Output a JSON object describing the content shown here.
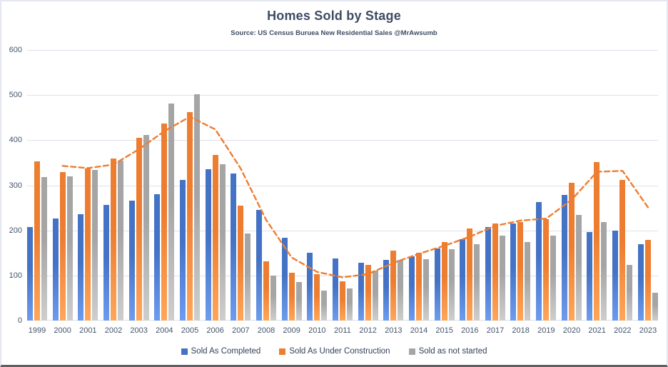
{
  "header": {
    "title": "Homes Sold by Stage",
    "subtitle": "Source: US Census Buruea New Residential Sales @MrAwsumb"
  },
  "colors": {
    "completed": "#4472C4",
    "under_construction": "#ED7D31",
    "not_started": "#A5A5A5",
    "trend": "#ED7D31",
    "text": "#44546a",
    "gridline": "#dde1ea"
  },
  "chart_data": {
    "type": "bar",
    "title": "Homes Sold by Stage",
    "subtitle": "Source: US Census Buruea New Residential Sales @MrAwsumb",
    "xlabel": "",
    "ylabel": "",
    "ylim": [
      0,
      600
    ],
    "yticks": [
      0,
      100,
      200,
      300,
      400,
      500,
      600
    ],
    "grid": true,
    "legend_position": "bottom",
    "categories": [
      "1999",
      "2000",
      "2001",
      "2002",
      "2003",
      "2004",
      "2005",
      "2006",
      "2007",
      "2008",
      "2009",
      "2010",
      "2011",
      "2012",
      "2013",
      "2014",
      "2015",
      "2016",
      "2017",
      "2018",
      "2019",
      "2020",
      "2021",
      "2022",
      "2023"
    ],
    "series": [
      {
        "name": "Sold As Completed",
        "color": "#4472C4",
        "values": [
          207,
          227,
          236,
          256,
          266,
          280,
          312,
          335,
          326,
          246,
          184,
          150,
          138,
          129,
          135,
          142,
          160,
          180,
          208,
          215,
          263,
          279,
          196,
          200,
          169
        ]
      },
      {
        "name": "Sold As Under Construction",
        "color": "#ED7D31",
        "values": [
          353,
          330,
          338,
          360,
          405,
          437,
          463,
          367,
          255,
          132,
          106,
          103,
          87,
          124,
          155,
          151,
          175,
          204,
          215,
          219,
          225,
          305,
          352,
          312,
          179
        ]
      },
      {
        "name": "Sold as not started",
        "color": "#A5A5A5",
        "values": [
          318,
          320,
          334,
          355,
          412,
          481,
          502,
          346,
          194,
          100,
          85,
          66,
          71,
          111,
          134,
          136,
          159,
          169,
          189,
          175,
          188,
          234,
          219,
          123,
          62
        ]
      }
    ],
    "trend_line": {
      "name": "smoothed-trend",
      "color": "#ED7D31",
      "style": "dashed",
      "start_category": "2000",
      "x": [
        "2000",
        "2001",
        "2002",
        "2003",
        "2004",
        "2005",
        "2006",
        "2007",
        "2008",
        "2009",
        "2010",
        "2011",
        "2012",
        "2013",
        "2014",
        "2015",
        "2016",
        "2017",
        "2018",
        "2019",
        "2020",
        "2021",
        "2022",
        "2023"
      ],
      "values": [
        343,
        338,
        346,
        380,
        420,
        452,
        424,
        337,
        223,
        140,
        108,
        96,
        103,
        128,
        148,
        166,
        186,
        210,
        222,
        226,
        268,
        330,
        332,
        251
      ]
    }
  }
}
